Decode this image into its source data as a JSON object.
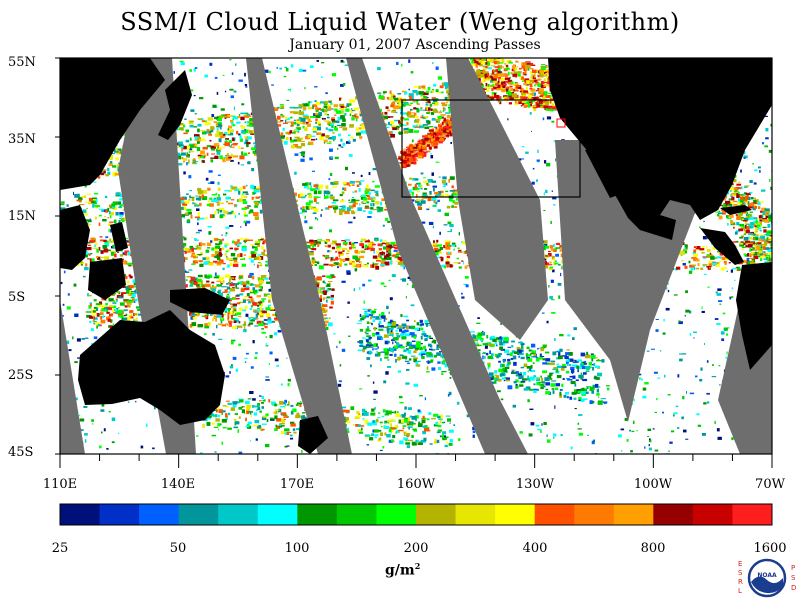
{
  "title": "SSM/I Cloud Liquid Water (Weng algorithm)",
  "subtitle": "January 01, 2007  Ascending Passes",
  "map": {
    "lat_labels": [
      "55N",
      "35N",
      "15N",
      "5S",
      "25S",
      "45S"
    ],
    "lon_labels": [
      "110E",
      "140E",
      "170E",
      "160W",
      "130W",
      "100W",
      "70W"
    ],
    "colors": {
      "ocean_cloud_free": "#ffffff",
      "land": "#000000",
      "no_data_swath_gap": "#6e6e6e",
      "box_outline": "#000000",
      "marker": "#ff0000"
    }
  },
  "colorbar": {
    "labels": [
      "25",
      "50",
      "100",
      "200",
      "400",
      "800",
      "1600"
    ],
    "colors": [
      "#00107a",
      "#0030c8",
      "#0060ff",
      "#00969c",
      "#00c8c8",
      "#00ffff",
      "#009600",
      "#00c800",
      "#00ff00",
      "#b4b400",
      "#e6e600",
      "#ffff00",
      "#ff5000",
      "#ff7a00",
      "#ffa000",
      "#960000",
      "#c80000",
      "#ff1e1e"
    ],
    "units_base": "g/m",
    "units_sup": "2"
  },
  "logo": {
    "left_letters": [
      "E",
      "S",
      "R",
      "L"
    ],
    "right_letters": [
      "P",
      "S",
      "D"
    ],
    "center_text": "NOAA"
  }
}
